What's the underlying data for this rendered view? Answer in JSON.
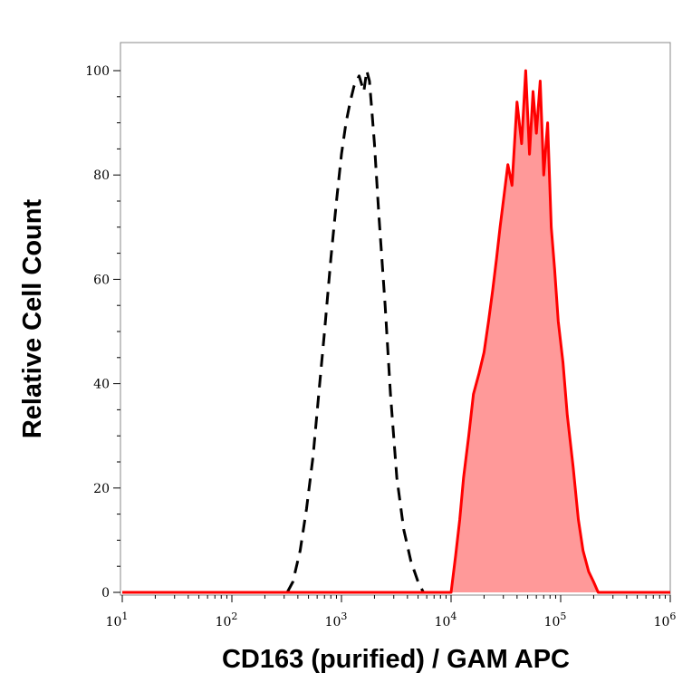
{
  "chart_data": {
    "type": "area",
    "title": "",
    "xlabel": "CD163 (purified) / GAM APC",
    "ylabel": "Relative Cell Count",
    "x_scale": "log",
    "xlim": [
      10,
      1000000
    ],
    "ylim": [
      0,
      100
    ],
    "x_ticks": [
      {
        "base": "10",
        "exp": "1",
        "value": 10
      },
      {
        "base": "10",
        "exp": "2",
        "value": 100
      },
      {
        "base": "10",
        "exp": "3",
        "value": 1000
      },
      {
        "base": "10",
        "exp": "4",
        "value": 10000
      },
      {
        "base": "10",
        "exp": "5",
        "value": 100000
      },
      {
        "base": "10",
        "exp": "6",
        "value": 1000000
      }
    ],
    "y_ticks": [
      "0",
      "20",
      "40",
      "60",
      "80",
      "100"
    ],
    "grid": false,
    "legend": "none",
    "series": [
      {
        "style": "dashed",
        "color": "#000000",
        "fill": "none",
        "x": [
          320,
          360,
          420,
          480,
          550,
          620,
          700,
          800,
          900,
          1000,
          1100,
          1200,
          1300,
          1450,
          1600,
          1700,
          1800,
          1900,
          2000,
          2200,
          2500,
          2800,
          3200,
          3700,
          4300,
          5000,
          5600
        ],
        "y": [
          0,
          2,
          8,
          16,
          26,
          38,
          50,
          64,
          75,
          84,
          90,
          94,
          97,
          99,
          96,
          100,
          98,
          92,
          86,
          72,
          55,
          38,
          22,
          12,
          6,
          2,
          0
        ]
      },
      {
        "style": "solid",
        "color": "#ff0000",
        "fill": "#ff9999",
        "x": [
          10,
          10000,
          11000,
          12000,
          13000,
          14500,
          16000,
          18000,
          20000,
          22000,
          24000,
          26000,
          28000,
          30000,
          33000,
          36000,
          40000,
          44000,
          48000,
          52000,
          56000,
          60000,
          65000,
          70000,
          76000,
          82000,
          88000,
          95000,
          105000,
          115000,
          130000,
          145000,
          160000,
          180000,
          200000,
          220000,
          1000000
        ],
        "y": [
          0,
          0,
          7,
          14,
          22,
          30,
          38,
          42,
          46,
          52,
          58,
          64,
          70,
          75,
          82,
          78,
          94,
          86,
          100,
          84,
          96,
          88,
          98,
          80,
          90,
          70,
          62,
          52,
          44,
          34,
          24,
          14,
          8,
          4,
          2,
          0,
          0
        ]
      }
    ]
  }
}
